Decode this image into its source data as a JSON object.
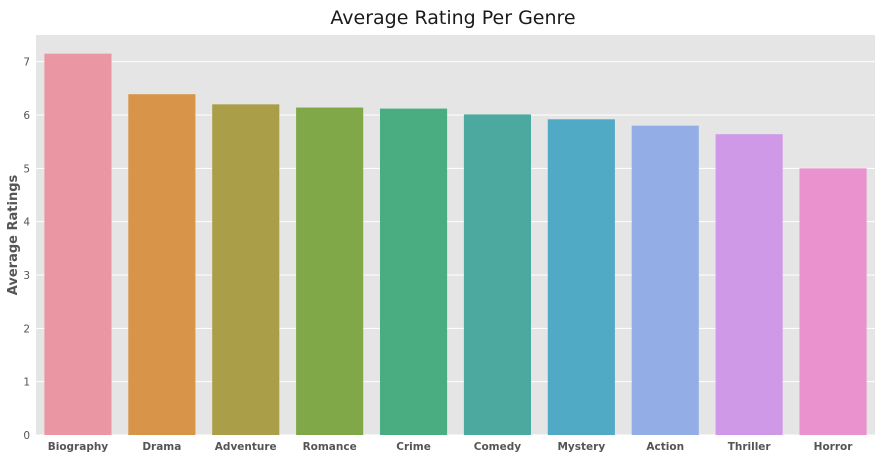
{
  "chart_data": {
    "type": "bar",
    "title": "Average Rating Per Genre",
    "xlabel": "",
    "ylabel": "Average Ratings",
    "categories": [
      "Biography",
      "Drama",
      "Adventure",
      "Romance",
      "Crime",
      "Comedy",
      "Mystery",
      "Action",
      "Thriller",
      "Horror"
    ],
    "values": [
      7.15,
      6.39,
      6.2,
      6.14,
      6.12,
      6.01,
      5.92,
      5.8,
      5.64,
      5.0
    ],
    "ylim": [
      0,
      7.5
    ],
    "yticks": [
      "0",
      "1",
      "2",
      "3",
      "4",
      "5",
      "6",
      "7"
    ],
    "grid": true,
    "background_color": "#e5e5e5",
    "colors": [
      "#ea96a3",
      "#d8954a",
      "#aa9f48",
      "#80a848",
      "#4aad81",
      "#4ba9a0",
      "#50aac5",
      "#93aee7",
      "#cf99e8",
      "#e992cd"
    ]
  }
}
